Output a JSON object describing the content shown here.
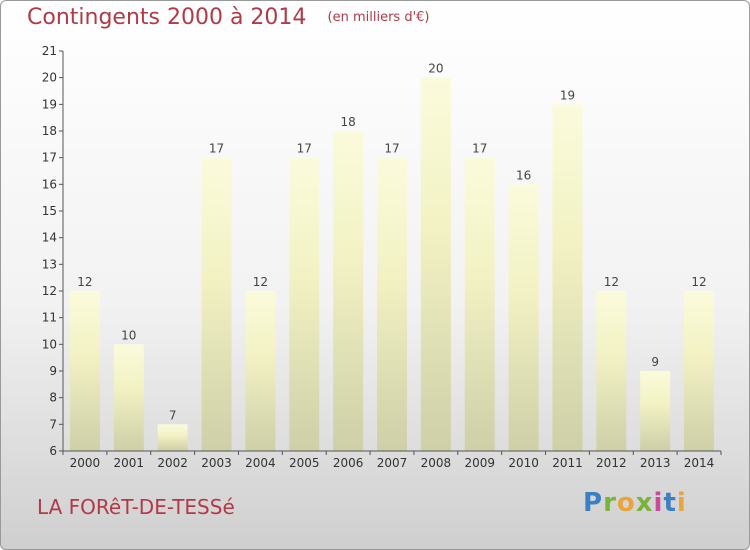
{
  "header": {
    "title": "Contingents 2000 à 2014",
    "subtitle": "(en milliers d'€)"
  },
  "footer": {
    "place": "LA FORêT-DE-TESSé",
    "logo": {
      "text": "Proxiti",
      "colors": [
        "#3b7fc4",
        "#7bb33a",
        "#e8a53c",
        "#7bb33a",
        "#c94a9a",
        "#3b7fc4",
        "#e8a53c"
      ]
    }
  },
  "colors": {
    "bar_top": "#fbfbdc",
    "bar_mid": "#f2f2c4",
    "bar_bottom": "#cfcfa8",
    "axis": "#555555",
    "text": "#b23a48"
  },
  "chart_data": {
    "type": "bar",
    "title": "Contingents 2000 à 2014",
    "subtitle": "(en milliers d'€)",
    "xlabel": "",
    "ylabel": "",
    "categories": [
      "2000",
      "2001",
      "2002",
      "2003",
      "2004",
      "2005",
      "2006",
      "2007",
      "2008",
      "2009",
      "2010",
      "2011",
      "2012",
      "2013",
      "2014"
    ],
    "values": [
      12,
      10,
      7,
      17,
      12,
      17,
      18,
      17,
      20,
      17,
      16,
      19,
      12,
      9,
      12
    ],
    "ylim": [
      6,
      21
    ],
    "yticks": [
      6,
      7,
      8,
      9,
      10,
      11,
      12,
      13,
      14,
      15,
      16,
      17,
      18,
      19,
      20,
      21
    ],
    "data_labels": true,
    "grid": false,
    "legend": "none"
  }
}
